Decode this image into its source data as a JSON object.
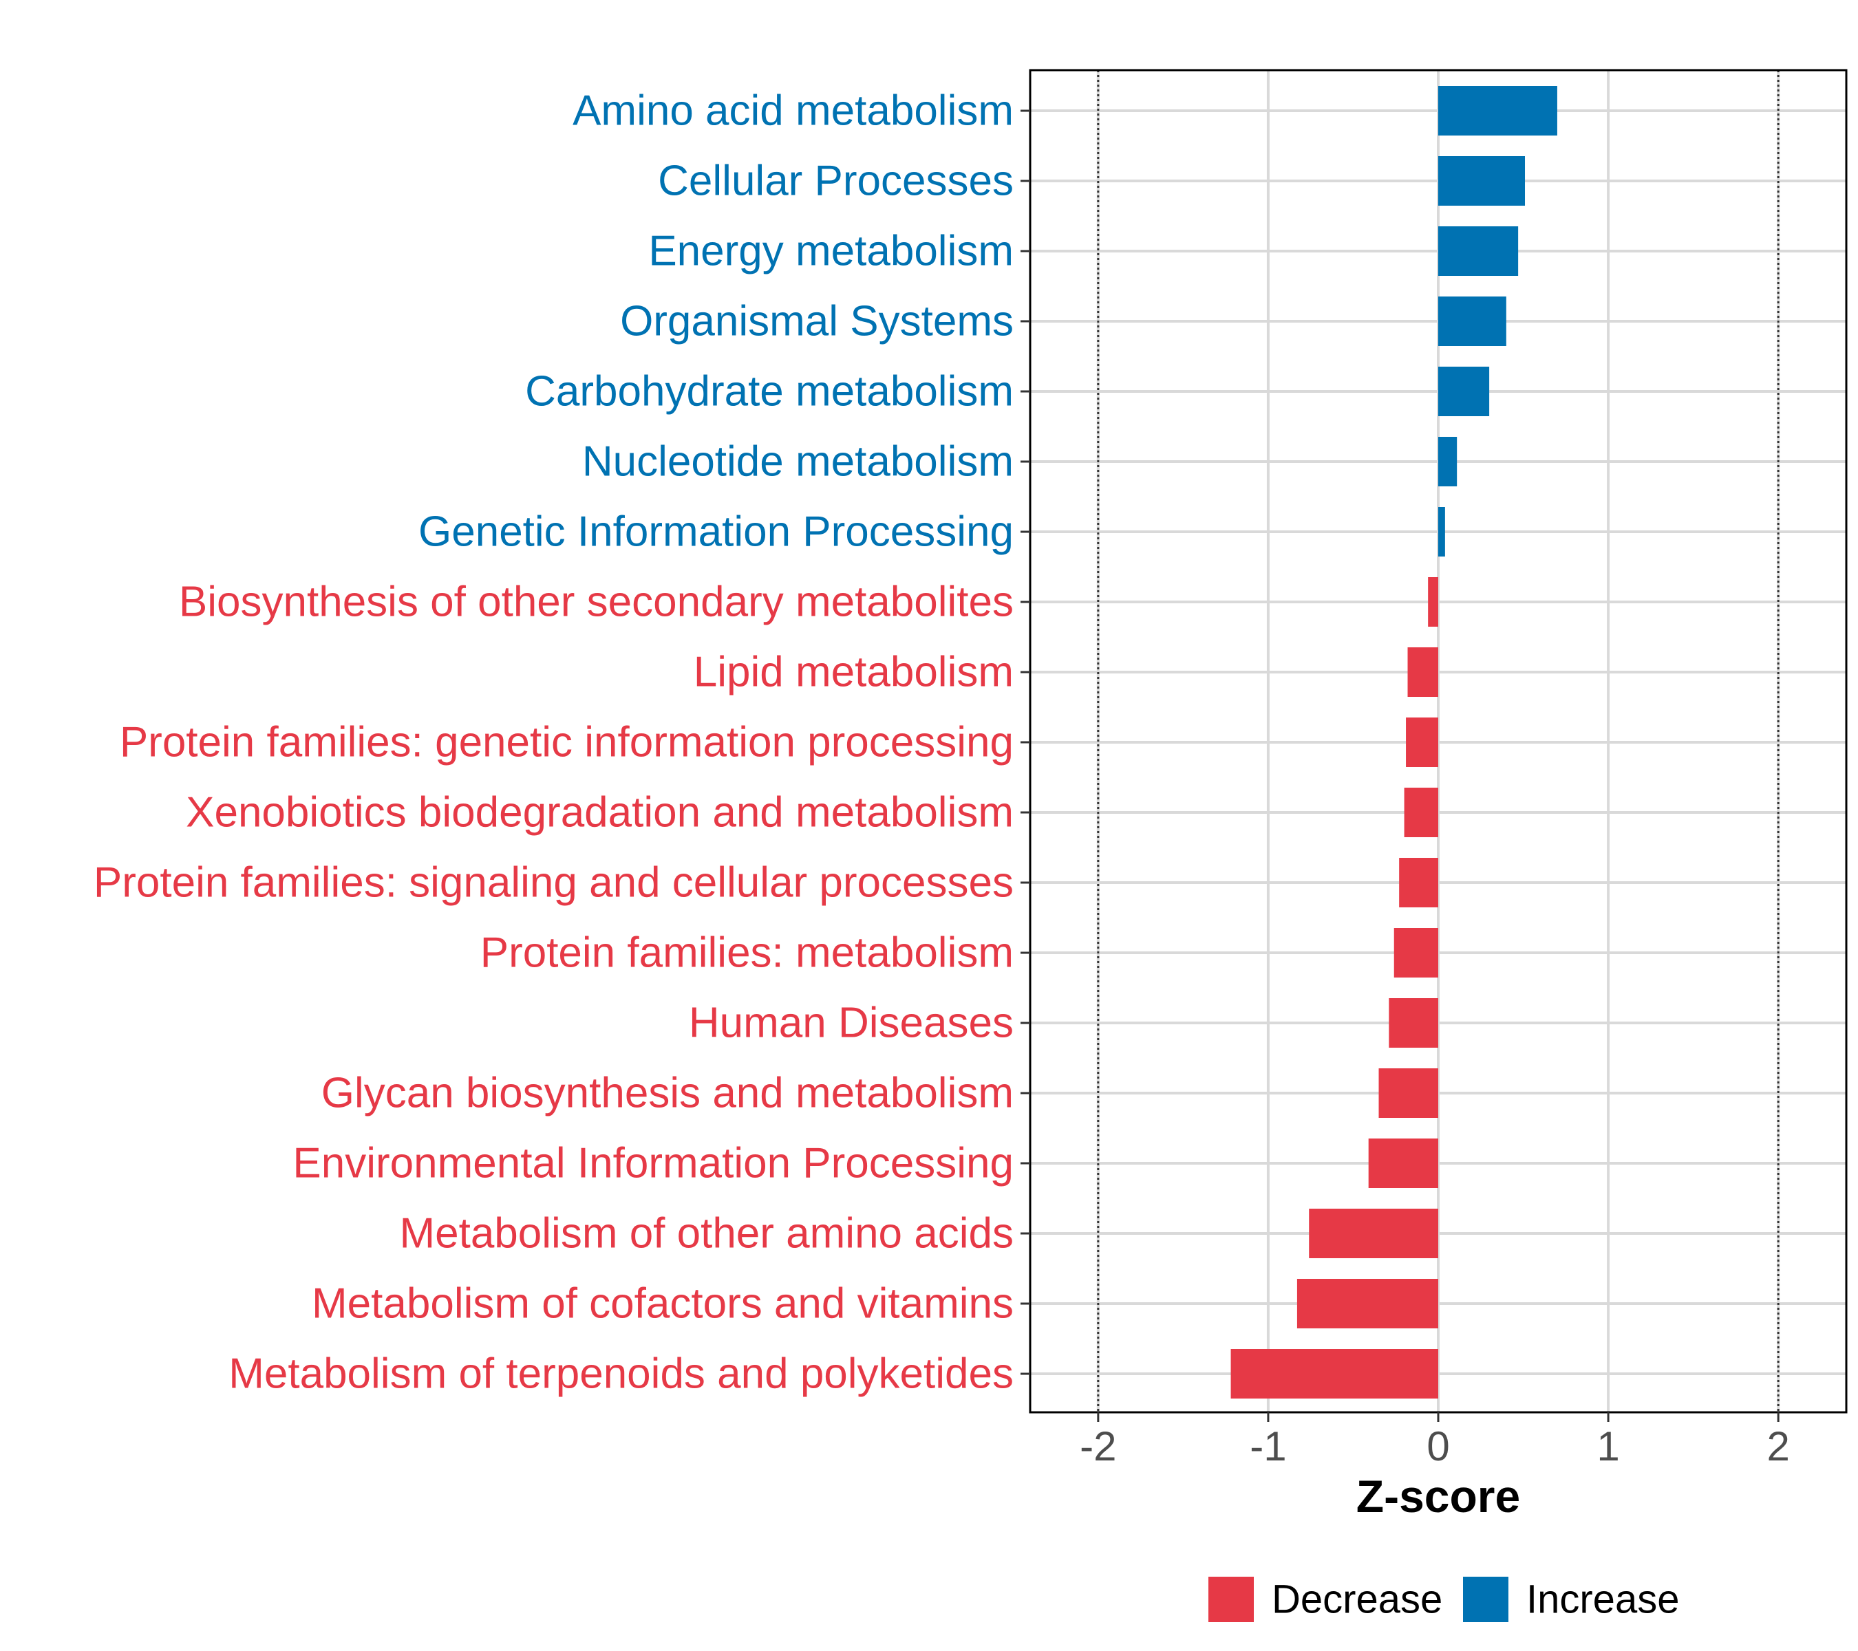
{
  "chart_data": {
    "type": "bar",
    "orientation": "horizontal",
    "xlabel": "Z-score",
    "xlim": [
      -2.4,
      2.4
    ],
    "xticks": [
      -2,
      -1,
      0,
      1,
      2
    ],
    "xtick_labels": [
      "-2",
      "-1",
      "0",
      "1",
      "2"
    ],
    "reference_lines": [
      -2,
      2
    ],
    "grid": true,
    "colors": {
      "Increase": "#0072b2",
      "Decrease": "#e63946"
    },
    "categories": [
      "Amino acid metabolism",
      "Cellular Processes",
      "Energy metabolism",
      "Organismal Systems",
      "Carbohydrate metabolism",
      "Nucleotide metabolism",
      "Genetic Information Processing",
      "Biosynthesis of other secondary metabolites",
      "Lipid metabolism",
      "Protein families: genetic information processing",
      "Xenobiotics biodegradation and metabolism",
      "Protein families: signaling and cellular processes",
      "Protein families: metabolism",
      "Human Diseases",
      "Glycan biosynthesis and metabolism",
      "Environmental Information Processing",
      "Metabolism of other amino acids",
      "Metabolism of cofactors and vitamins",
      "Metabolism of terpenoids and polyketides"
    ],
    "values": [
      0.7,
      0.51,
      0.47,
      0.4,
      0.3,
      0.11,
      0.04,
      -0.06,
      -0.18,
      -0.19,
      -0.2,
      -0.23,
      -0.26,
      -0.29,
      -0.35,
      -0.41,
      -0.76,
      -0.83,
      -1.22
    ],
    "groups": [
      "Increase",
      "Increase",
      "Increase",
      "Increase",
      "Increase",
      "Increase",
      "Increase",
      "Decrease",
      "Decrease",
      "Decrease",
      "Decrease",
      "Decrease",
      "Decrease",
      "Decrease",
      "Decrease",
      "Decrease",
      "Decrease",
      "Decrease",
      "Decrease"
    ],
    "legend": {
      "position": "bottom",
      "items": [
        {
          "label": "Decrease",
          "color": "#e63946"
        },
        {
          "label": "Increase",
          "color": "#0072b2"
        }
      ]
    }
  }
}
